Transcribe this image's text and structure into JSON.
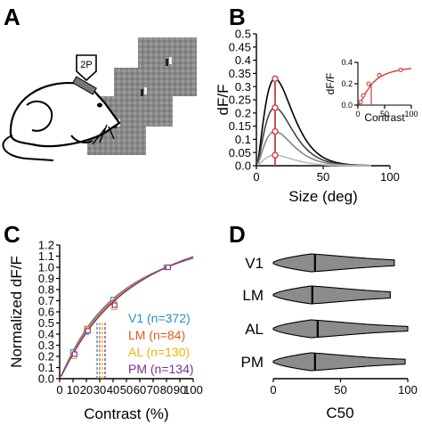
{
  "panels": {
    "a": {
      "label": "A",
      "device_label": "2P"
    },
    "b": {
      "label": "B"
    },
    "c": {
      "label": "C"
    },
    "d": {
      "label": "D"
    }
  },
  "chart_data": [
    {
      "id": "B",
      "type": "line",
      "xlabel": "Size (deg)",
      "ylabel": "dF/F",
      "xlim": [
        0,
        100
      ],
      "ylim": [
        0,
        0.5
      ],
      "xticks": [
        0,
        50,
        100
      ],
      "yticks": [
        0,
        0.05,
        0.1,
        0.15,
        0.2,
        0.25,
        0.3,
        0.35,
        0.4,
        0.45,
        0.5
      ],
      "ytick_labels": [
        "0.0",
        "0.05",
        "0.1",
        "0.15",
        "0.2",
        "0.25",
        "0.3",
        "0.35",
        "0.4",
        "0.45",
        "0.5"
      ],
      "xtick_labels": [
        "0",
        "50",
        "100"
      ],
      "curves": [
        {
          "peak": 0.33,
          "color": "#000000"
        },
        {
          "peak": 0.22,
          "color": "#444444"
        },
        {
          "peak": 0.13,
          "color": "#888888"
        },
        {
          "peak": 0.04,
          "color": "#bbbbbb"
        }
      ],
      "peak_x": 14,
      "marker_color": "#d23b3b",
      "grid": false
    },
    {
      "id": "B-inset",
      "type": "scatter",
      "xlabel": "Contrast",
      "ylabel": "dF/F",
      "xlim": [
        0,
        100
      ],
      "ylim": [
        0,
        0.4
      ],
      "xticks": [
        0,
        50,
        100
      ],
      "yticks": [
        0,
        0.2,
        0.4
      ],
      "xtick_labels": [
        "0",
        "50",
        "100"
      ],
      "ytick_labels": [
        "0.0",
        "0.2",
        "0.4"
      ],
      "x": [
        5,
        10,
        20,
        40,
        80
      ],
      "y": [
        0.03,
        0.09,
        0.2,
        0.28,
        0.33
      ],
      "c50": 25,
      "color": "#d23b3b"
    },
    {
      "id": "C",
      "type": "line",
      "xlabel": "Contrast (%)",
      "ylabel": "Normalized dF/F",
      "xlim": [
        0,
        100
      ],
      "ylim": [
        0,
        1.2
      ],
      "xticks": [
        0,
        10,
        20,
        30,
        40,
        50,
        60,
        70,
        80,
        90,
        100
      ],
      "yticks": [
        0,
        0.1,
        0.2,
        0.3,
        0.4,
        0.5,
        0.6,
        0.7,
        0.8,
        0.9,
        1.0,
        1.1,
        1.2
      ],
      "xtick_labels": [
        "0",
        "10",
        "20",
        "30",
        "40",
        "50",
        "60",
        "70",
        "80",
        "90",
        "100"
      ],
      "ytick_labels": [
        "0.0",
        "0.1",
        "0.2",
        "0.3",
        "0.4",
        "0.5",
        "0.6",
        "0.7",
        "0.8",
        "0.9",
        "1.0",
        "1.1",
        "1.2"
      ],
      "x": [
        10,
        20,
        40,
        80
      ],
      "series": [
        {
          "name": "V1 (n=372)",
          "color": "#2b8cc4",
          "values": [
            0.24,
            0.42,
            0.71,
            1.0
          ],
          "c50": 28
        },
        {
          "name": "LM (n=84)",
          "color": "#e8571c",
          "values": [
            0.21,
            0.45,
            0.68,
            1.0
          ],
          "c50": 30
        },
        {
          "name": "AL (n=130)",
          "color": "#f2b10a",
          "values": [
            0.2,
            0.44,
            0.64,
            1.0
          ],
          "c50": 32
        },
        {
          "name": "PM (n=134)",
          "color": "#7b3294",
          "values": [
            0.22,
            0.43,
            0.66,
            1.0
          ],
          "c50": 34
        }
      ],
      "legend": "bottom-right"
    },
    {
      "id": "D",
      "type": "violin",
      "xlabel": "C50",
      "xlim": [
        0,
        100
      ],
      "xticks": [
        0,
        50,
        100
      ],
      "xtick_labels": [
        "0",
        "50",
        "100"
      ],
      "categories": [
        "V1",
        "LM",
        "AL",
        "PM"
      ],
      "medians": [
        31,
        29,
        33,
        31
      ],
      "max_values": [
        90,
        87,
        100,
        98
      ],
      "fill": "#8c8c8c"
    }
  ]
}
